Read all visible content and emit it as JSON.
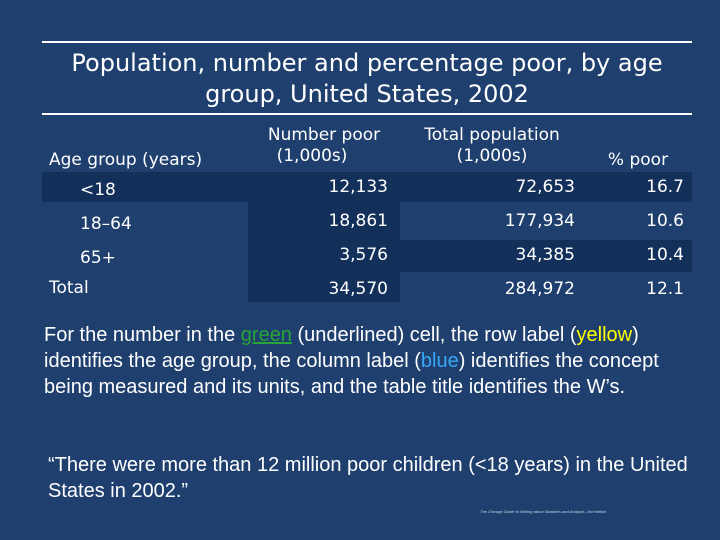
{
  "title": "Population, number and percentage poor, by age group, United States, 2002",
  "table": {
    "headers": {
      "age": "Age group (years)",
      "number_poor_1": "Number poor",
      "number_poor_2": "(1,000s)",
      "total_pop_1": "Total population",
      "total_pop_2": "(1,000s)",
      "pct_poor": "% poor"
    },
    "rows": [
      {
        "age": "<18",
        "poor": "12,133",
        "total": "72,653",
        "pct": "16.7"
      },
      {
        "age": "18–64",
        "poor": "18,861",
        "total": "177,934",
        "pct": "10.6"
      },
      {
        "age": "65+",
        "poor": "3,576",
        "total": "34,385",
        "pct": "10.4"
      },
      {
        "age": "Total",
        "poor": "34,570",
        "total": "284,972",
        "pct": "12.1"
      }
    ]
  },
  "explanation": {
    "p1": "For the number in the ",
    "green_word": "green",
    "p2": " (underlined) cell, the row label (",
    "yellow_word": "yellow",
    "p3": ") identifies the age group, the column label (",
    "blue_word": "blue",
    "p4": ") identifies the concept being measured and its units, and the table title identifies the W’s."
  },
  "quote": "“There were more than 12 million poor children (<18 years) in the United States in 2002.”",
  "footnote": "The Chicago Guide to Writing about Numbers and Analysis, 2nd edition",
  "colors": {
    "background": "#1f3f6e",
    "shade": "#13305a",
    "green": "#27a539",
    "yellow": "#ffff00",
    "blue": "#39a7f4"
  }
}
